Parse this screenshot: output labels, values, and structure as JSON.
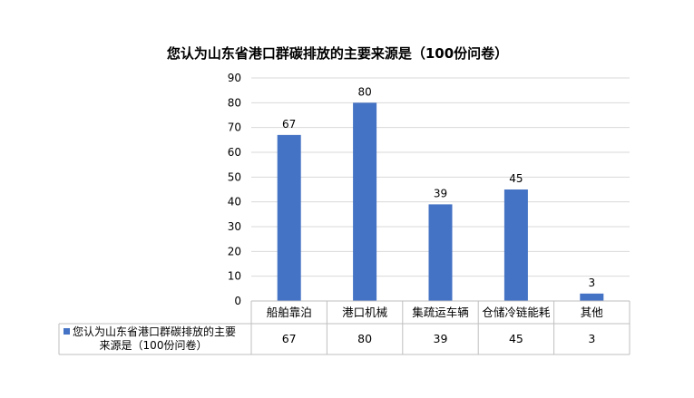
{
  "chart_data": {
    "type": "bar",
    "title": "您认为山东省港口群碳排放的主要来源是（100份问卷）",
    "categories": [
      "船舶靠泊",
      "港口机械",
      "集疏运车辆",
      "仓储冷链能耗",
      "其他"
    ],
    "series": [
      {
        "name": "您认为山东省港口群碳排放的主要来源是（100份问卷）",
        "legend_lines": [
          "您认为山东省港口群碳排放的主要",
          "来源是（100份问卷）"
        ],
        "values": [
          67,
          80,
          39,
          45,
          3
        ],
        "color": "#4472C4"
      }
    ],
    "ylim": [
      0,
      90
    ],
    "yticks": [
      0,
      10,
      20,
      30,
      40,
      50,
      60,
      70,
      80,
      90
    ],
    "grid": true,
    "data_labels": true,
    "data_table": true,
    "gridline_color": "#D9D9D9",
    "table_border_color": "#BFBFBF"
  }
}
